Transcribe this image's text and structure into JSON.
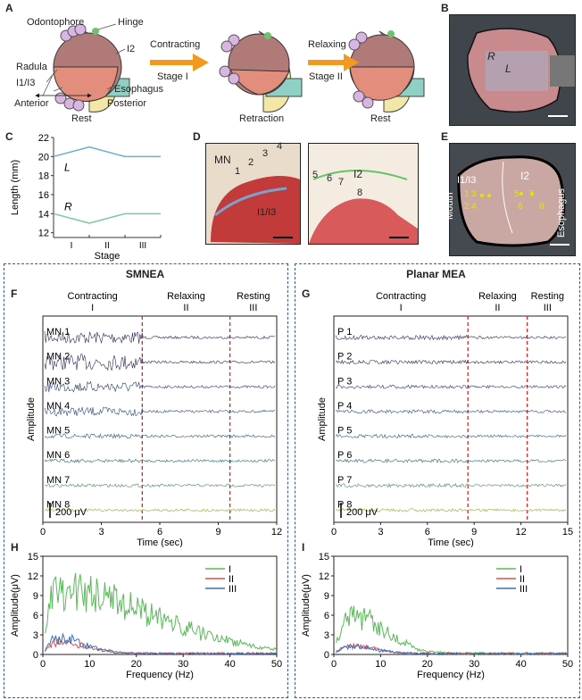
{
  "panels": {
    "A": {
      "letter": "A",
      "labels": {
        "odontophore": "Odontophore",
        "hinge": "Hinge",
        "i2": "I2",
        "radula": "Radula",
        "i1i3": "I1/I3",
        "esophagus": "Esophagus",
        "anterior": "Anterior",
        "posterior": "Posterior"
      },
      "arrows": [
        {
          "top": "Contracting",
          "bottom": "Stage I"
        },
        {
          "top": "Relaxing",
          "bottom": "Stage II"
        }
      ],
      "states": [
        "Rest",
        "Retraction",
        "Rest"
      ],
      "colors": {
        "odontophore": "#b07a78",
        "radula": "#e38e7c",
        "i2": "#f3e7a8",
        "esophagus": "#8ed0c4",
        "arrow": "#f39a1e"
      }
    },
    "B": {
      "letter": "B",
      "labels": [
        "R",
        "L"
      ]
    },
    "C": {
      "letter": "C",
      "ylabel": "Length (mm)",
      "xlabel": "Stage",
      "stages": [
        "I",
        "II",
        "III"
      ],
      "series_labels": [
        "L",
        "R"
      ]
    },
    "D": {
      "letter": "D",
      "mn": "MN",
      "nums_left": [
        "1",
        "2",
        "3",
        "4"
      ],
      "tissue": "I1/I3",
      "nums_right": [
        "5",
        "6",
        "7",
        "8"
      ],
      "i2": "I2"
    },
    "E": {
      "letter": "E",
      "i1i3": "I1/I3",
      "i2": "I2",
      "mouth": "Mouth",
      "esophagus": "Esophagus",
      "dots": [
        "1",
        "3",
        "5",
        "7",
        "2",
        "4",
        "6",
        "8"
      ]
    },
    "F": {
      "letter": "F",
      "title": "SMNEA",
      "phases": [
        {
          "name": "Contracting",
          "stage": "I"
        },
        {
          "name": "Relaxing",
          "stage": "II"
        },
        {
          "name": "Resting",
          "stage": "III"
        }
      ],
      "channels": [
        "MN 1",
        "MN 2",
        "MN 3",
        "MN 4",
        "MN 5",
        "MN 6",
        "MN 7",
        "MN 8"
      ],
      "scale": "200 μV",
      "ylabel": "Amplitude",
      "xlabel": "Time (sec)",
      "xticks": [
        "0",
        "3",
        "6",
        "9",
        "12"
      ]
    },
    "G": {
      "letter": "G",
      "title": "Planar MEA",
      "phases": [
        {
          "name": "Contracting",
          "stage": "I"
        },
        {
          "name": "Relaxing",
          "stage": "II"
        },
        {
          "name": "Resting",
          "stage": "III"
        }
      ],
      "channels": [
        "P 1",
        "P 2",
        "P 3",
        "P 4",
        "P 5",
        "P 6",
        "P 7",
        "P 8"
      ],
      "scale": "200 μV",
      "ylabel": "Amplitude",
      "xlabel": "Time (sec)",
      "xticks": [
        "0",
        "3",
        "6",
        "9",
        "12",
        "15"
      ]
    },
    "H": {
      "letter": "H"
    },
    "I": {
      "letter": "I"
    }
  },
  "chart_data": [
    {
      "id": "C",
      "type": "line",
      "title": "",
      "xlabel": "Stage",
      "ylabel": "Length (mm)",
      "ylim": [
        11.5,
        22
      ],
      "yticks": [
        "12",
        "14",
        "16",
        "18",
        "20",
        "22"
      ],
      "categories": [
        "I",
        "II",
        "III"
      ],
      "series": [
        {
          "name": "L",
          "color": "#6aaed6",
          "x": [
            0,
            1,
            2,
            3
          ],
          "values": [
            20,
            21,
            20,
            20
          ]
        },
        {
          "name": "R",
          "color": "#7cc79a",
          "x": [
            0,
            1,
            2,
            3
          ],
          "values": [
            14,
            13,
            14,
            14
          ]
        }
      ]
    },
    {
      "id": "H",
      "type": "line",
      "xlabel": "Frequency (Hz)",
      "ylabel": "Amplitude(μV)",
      "xlim": [
        0,
        50
      ],
      "ylim": [
        0,
        15
      ],
      "xticks": [
        "0",
        "10",
        "20",
        "30",
        "40",
        "50"
      ],
      "yticks": [
        "0",
        "3",
        "6",
        "9",
        "12",
        "15"
      ],
      "legend": [
        "I",
        "II",
        "III"
      ],
      "series": [
        {
          "name": "I",
          "color": "#5cb85c",
          "peak": 12.5,
          "decay": 20
        },
        {
          "name": "II",
          "color": "#d9534f",
          "peak": 2.2,
          "decay": 6
        },
        {
          "name": "III",
          "color": "#3b6fb6",
          "peak": 3.0,
          "decay": 5
        }
      ]
    },
    {
      "id": "I",
      "type": "line",
      "xlabel": "Frequency (Hz)",
      "ylabel": "Amplitude(μV)",
      "xlim": [
        0,
        50
      ],
      "ylim": [
        0,
        15
      ],
      "xticks": [
        "0",
        "10",
        "20",
        "30",
        "40",
        "50"
      ],
      "yticks": [
        "0",
        "3",
        "6",
        "9",
        "12",
        "15"
      ],
      "legend": [
        "I",
        "II",
        "III"
      ],
      "series": [
        {
          "name": "I",
          "color": "#5cb85c",
          "peak": 7.5,
          "decay": 7
        },
        {
          "name": "II",
          "color": "#d9534f",
          "peak": 1.5,
          "decay": 5
        },
        {
          "name": "III",
          "color": "#3b6fb6",
          "peak": 1.3,
          "decay": 5
        }
      ]
    }
  ]
}
